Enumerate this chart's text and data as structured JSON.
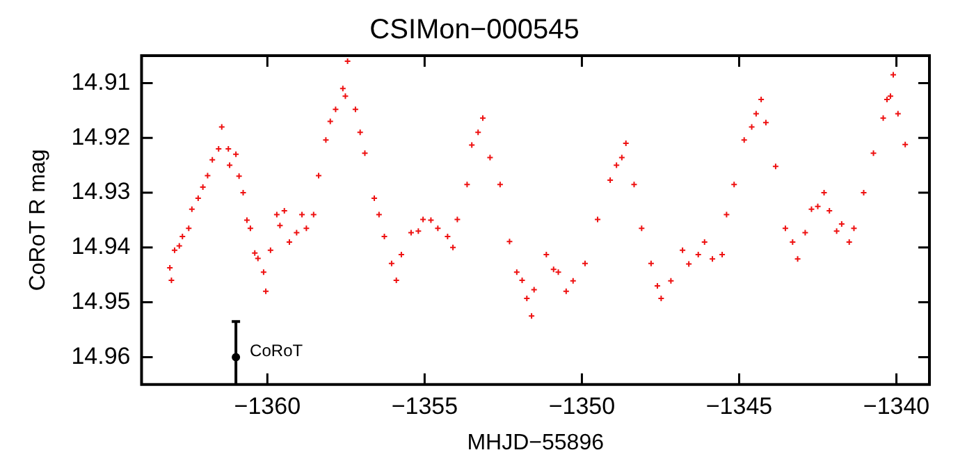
{
  "chart_data": {
    "type": "scatter",
    "title": "CSIMon−000545",
    "xlabel": "MHJD−55896",
    "ylabel": "CoRoT R mag",
    "xlim": [
      -1364,
      -1338.95
    ],
    "xticks": [
      -1360,
      -1355,
      -1350,
      -1345,
      -1340
    ],
    "ylim": [
      14.965,
      14.905
    ],
    "yticks": [
      14.91,
      14.92,
      14.93,
      14.94,
      14.95,
      14.96
    ],
    "grid": false,
    "legend": false,
    "series": [
      {
        "color": "#ee1111",
        "marker": "cross",
        "x": [
          -1363.1,
          -1363.05,
          -1362.95,
          -1362.8,
          -1362.7,
          -1362.5,
          -1362.4,
          -1362.2,
          -1362.05,
          -1361.9,
          -1361.75,
          -1361.55,
          -1361.45,
          -1361.24,
          -1361.2,
          -1361.0,
          -1360.9,
          -1360.77,
          -1360.65,
          -1360.54,
          -1360.4,
          -1360.3,
          -1360.12,
          -1360.05,
          -1359.9,
          -1359.7,
          -1359.6,
          -1359.46,
          -1359.3,
          -1359.07,
          -1358.9,
          -1358.76,
          -1358.53,
          -1358.37,
          -1358.14,
          -1358.0,
          -1357.83,
          -1357.6,
          -1357.52,
          -1357.45,
          -1357.2,
          -1357.05,
          -1356.9,
          -1356.6,
          -1356.45,
          -1356.28,
          -1356.05,
          -1355.9,
          -1355.74,
          -1355.43,
          -1355.2,
          -1355.05,
          -1354.8,
          -1354.58,
          -1354.27,
          -1354.1,
          -1353.96,
          -1353.65,
          -1353.5,
          -1353.3,
          -1353.15,
          -1352.92,
          -1352.6,
          -1352.3,
          -1352.07,
          -1351.9,
          -1351.75,
          -1351.6,
          -1351.52,
          -1351.13,
          -1350.9,
          -1350.75,
          -1350.5,
          -1350.28,
          -1349.9,
          -1349.5,
          -1349.1,
          -1348.9,
          -1348.73,
          -1348.6,
          -1348.34,
          -1348.1,
          -1347.8,
          -1347.6,
          -1347.48,
          -1347.17,
          -1346.8,
          -1346.6,
          -1346.3,
          -1346.1,
          -1345.85,
          -1345.54,
          -1345.4,
          -1345.16,
          -1344.84,
          -1344.6,
          -1344.46,
          -1344.3,
          -1344.15,
          -1343.84,
          -1343.53,
          -1343.3,
          -1343.14,
          -1342.9,
          -1342.7,
          -1342.5,
          -1342.3,
          -1342.13,
          -1341.9,
          -1341.74,
          -1341.5,
          -1341.35,
          -1341.04,
          -1340.73,
          -1340.42,
          -1340.3,
          -1340.19,
          -1340.1,
          -1339.95,
          -1339.72
        ],
        "values": [
          14.9437,
          14.946,
          14.9405,
          14.9397,
          14.938,
          14.9365,
          14.933,
          14.931,
          14.929,
          14.9269,
          14.924,
          14.922,
          14.918,
          14.922,
          14.925,
          14.923,
          14.927,
          14.93,
          14.935,
          14.9365,
          14.941,
          14.942,
          14.9445,
          14.948,
          14.9405,
          14.934,
          14.936,
          14.9333,
          14.939,
          14.9373,
          14.934,
          14.9365,
          14.934,
          14.9269,
          14.9204,
          14.917,
          14.9148,
          14.911,
          14.9124,
          14.906,
          14.9148,
          14.919,
          14.9228,
          14.931,
          14.934,
          14.938,
          14.9429,
          14.946,
          14.9413,
          14.9373,
          14.937,
          14.9349,
          14.935,
          14.9365,
          14.938,
          14.94,
          14.9349,
          14.9285,
          14.9213,
          14.919,
          14.9164,
          14.9236,
          14.9285,
          14.9389,
          14.9445,
          14.946,
          14.9493,
          14.9525,
          14.9477,
          14.9413,
          14.944,
          14.9445,
          14.948,
          14.9461,
          14.9429,
          14.9349,
          14.9277,
          14.925,
          14.9236,
          14.921,
          14.9285,
          14.9365,
          14.9429,
          14.947,
          14.9493,
          14.9461,
          14.9405,
          14.943,
          14.9413,
          14.939,
          14.9421,
          14.9413,
          14.934,
          14.9285,
          14.9204,
          14.918,
          14.9156,
          14.913,
          14.9172,
          14.9252,
          14.9365,
          14.939,
          14.9421,
          14.9373,
          14.933,
          14.9325,
          14.93,
          14.9333,
          14.937,
          14.9357,
          14.939,
          14.9365,
          14.93,
          14.9228,
          14.9164,
          14.913,
          14.9124,
          14.9085,
          14.9156,
          14.9212
        ]
      },
      {
        "name": "CoRoT",
        "color": "#000000",
        "marker": "circle",
        "x": [
          -1361.0
        ],
        "values": [
          14.96
        ],
        "errors": [
          [
            14.9535,
            14.965
          ]
        ]
      }
    ]
  }
}
